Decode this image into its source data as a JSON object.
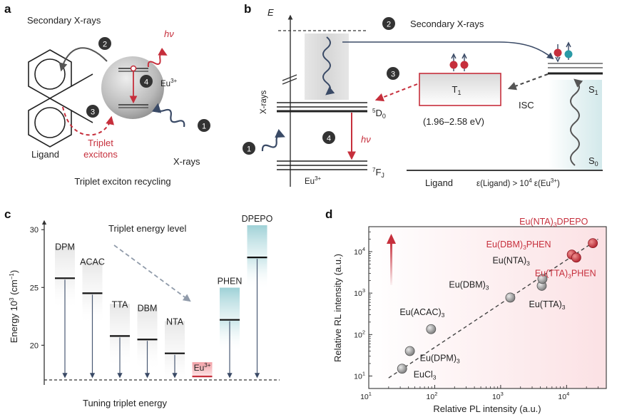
{
  "panel_a": {
    "letter": "a",
    "secondary_xrays": "Secondary X-rays",
    "hv_main": "hν",
    "hv_sup": "",
    "eu_label": "Eu",
    "eu_sup": "3+",
    "ligand": "Ligand",
    "triplet_line1": "Triplet",
    "triplet_line2": "excitons",
    "xrays": "X-rays",
    "caption": "Triplet exciton recycling",
    "steps": [
      "1",
      "2",
      "3",
      "4"
    ]
  },
  "panel_b": {
    "letter": "b",
    "energy_axis": "E",
    "secondary_xrays": "Secondary X-rays",
    "xrays_axis": "X-rays",
    "t1": "T",
    "t1_sub": "1",
    "t1_range": "(1.96–2.58 eV)",
    "isc": "ISC",
    "s1": "S",
    "s1_sub": "1",
    "s0": "S",
    "s0_sub": "0",
    "d0": "D",
    "d0_pre": "5",
    "d0_sub": "0",
    "fj": "F",
    "fj_pre": "7",
    "fj_sub": "J",
    "hv": "hν",
    "eu": "Eu",
    "eu_sup": "3+",
    "ligand": "Ligand",
    "condition_left": "ε(Ligand) > 10",
    "condition_exp": "4",
    "condition_right": " ε(Eu",
    "condition_sup": "3+",
    "condition_close": ")",
    "steps": [
      "1",
      "2",
      "3",
      "4"
    ]
  },
  "panel_c": {
    "letter": "c",
    "title": "Triplet energy level",
    "ylabel": "Energy 10",
    "ylabel_sup": "3",
    "ylabel_unit": " (cm",
    "ylabel_unit_sup": "−1",
    "ylabel_close": ")",
    "xlabel": "Tuning triplet energy",
    "yticks": [
      "20",
      "25",
      "30"
    ],
    "eu_label": "Eu",
    "eu_sup": "3+"
  },
  "panel_d": {
    "letter": "d",
    "xlabel": "Relative PL intensity (a.u.)",
    "ylabel": "Relative RL intensity (a.u.)",
    "xticks": [
      {
        "base": "10",
        "exp": "1"
      },
      {
        "base": "10",
        "exp": "2"
      },
      {
        "base": "10",
        "exp": "3"
      },
      {
        "base": "10",
        "exp": "4"
      }
    ],
    "yticks": [
      {
        "base": "10",
        "exp": "1"
      },
      {
        "base": "10",
        "exp": "2"
      },
      {
        "base": "10",
        "exp": "3"
      },
      {
        "base": "10",
        "exp": "4"
      }
    ]
  },
  "colors": {
    "red": "#c62f3c",
    "teal": "#2a9aa6",
    "navy": "#3a4a66",
    "grey_sphere": "#b8b8b8"
  },
  "chart_data": [
    {
      "type": "bar",
      "title": "Triplet energy level",
      "ylabel": "Energy 10^3 (cm−1)",
      "xlabel": "Tuning triplet energy",
      "ylim": [
        17,
        31
      ],
      "categories": [
        "DPM",
        "ACAC",
        "TTA",
        "DBM",
        "NTA",
        "Eu3+",
        "PHEN",
        "DPEPO"
      ],
      "values": [
        25.8,
        24.5,
        20.8,
        20.5,
        19.3,
        17.3,
        22.2,
        27.6
      ],
      "reference_line": 17.3
    },
    {
      "type": "scatter",
      "xlabel": "Relative PL intensity (a.u.)",
      "ylabel": "Relative RL intensity (a.u.)",
      "xscale": "log",
      "yscale": "log",
      "xlim": [
        10,
        40000
      ],
      "ylim": [
        5,
        40000
      ],
      "points": [
        {
          "label": "EuCl3",
          "label_main": "EuCl",
          "label_sub": "3",
          "label_tail": "",
          "x": 32,
          "y": 15,
          "group": "grey"
        },
        {
          "label": "Eu(DPM)3",
          "label_main": "Eu(DPM)",
          "label_sub": "3",
          "label_tail": "",
          "x": 42,
          "y": 40,
          "group": "grey"
        },
        {
          "label": "Eu(ACAC)3",
          "label_main": "Eu(ACAC)",
          "label_sub": "3",
          "label_tail": "",
          "x": 88,
          "y": 135,
          "group": "grey"
        },
        {
          "label": "Eu(DBM)3",
          "label_main": "Eu(DBM)",
          "label_sub": "3",
          "label_tail": "",
          "x": 1400,
          "y": 780,
          "group": "grey"
        },
        {
          "label": "Eu(TTA)3",
          "label_main": "Eu(TTA)",
          "label_sub": "3",
          "label_tail": "",
          "x": 4200,
          "y": 1500,
          "group": "grey"
        },
        {
          "label": "Eu(NTA)3",
          "label_main": "Eu(NTA)",
          "label_sub": "3",
          "label_tail": "",
          "x": 4300,
          "y": 2200,
          "group": "grey"
        },
        {
          "label": "Eu(DBM)3PHEN",
          "label_main": "Eu(DBM)",
          "label_sub": "3",
          "label_tail": "PHEN",
          "x": 12000,
          "y": 8500,
          "group": "red"
        },
        {
          "label": "Eu(TTA)3PHEN",
          "label_main": "Eu(TTA)",
          "label_sub": "3",
          "label_tail": "PHEN",
          "x": 14000,
          "y": 7200,
          "group": "red"
        },
        {
          "label": "Eu(NTA)3DPEPO",
          "label_main": "Eu(NTA)",
          "label_sub": "3",
          "label_tail": "DPEPO",
          "x": 25000,
          "y": 16000,
          "group": "red"
        }
      ],
      "fit_line": {
        "x": [
          20,
          30000
        ],
        "y": [
          9,
          20000
        ]
      }
    }
  ]
}
